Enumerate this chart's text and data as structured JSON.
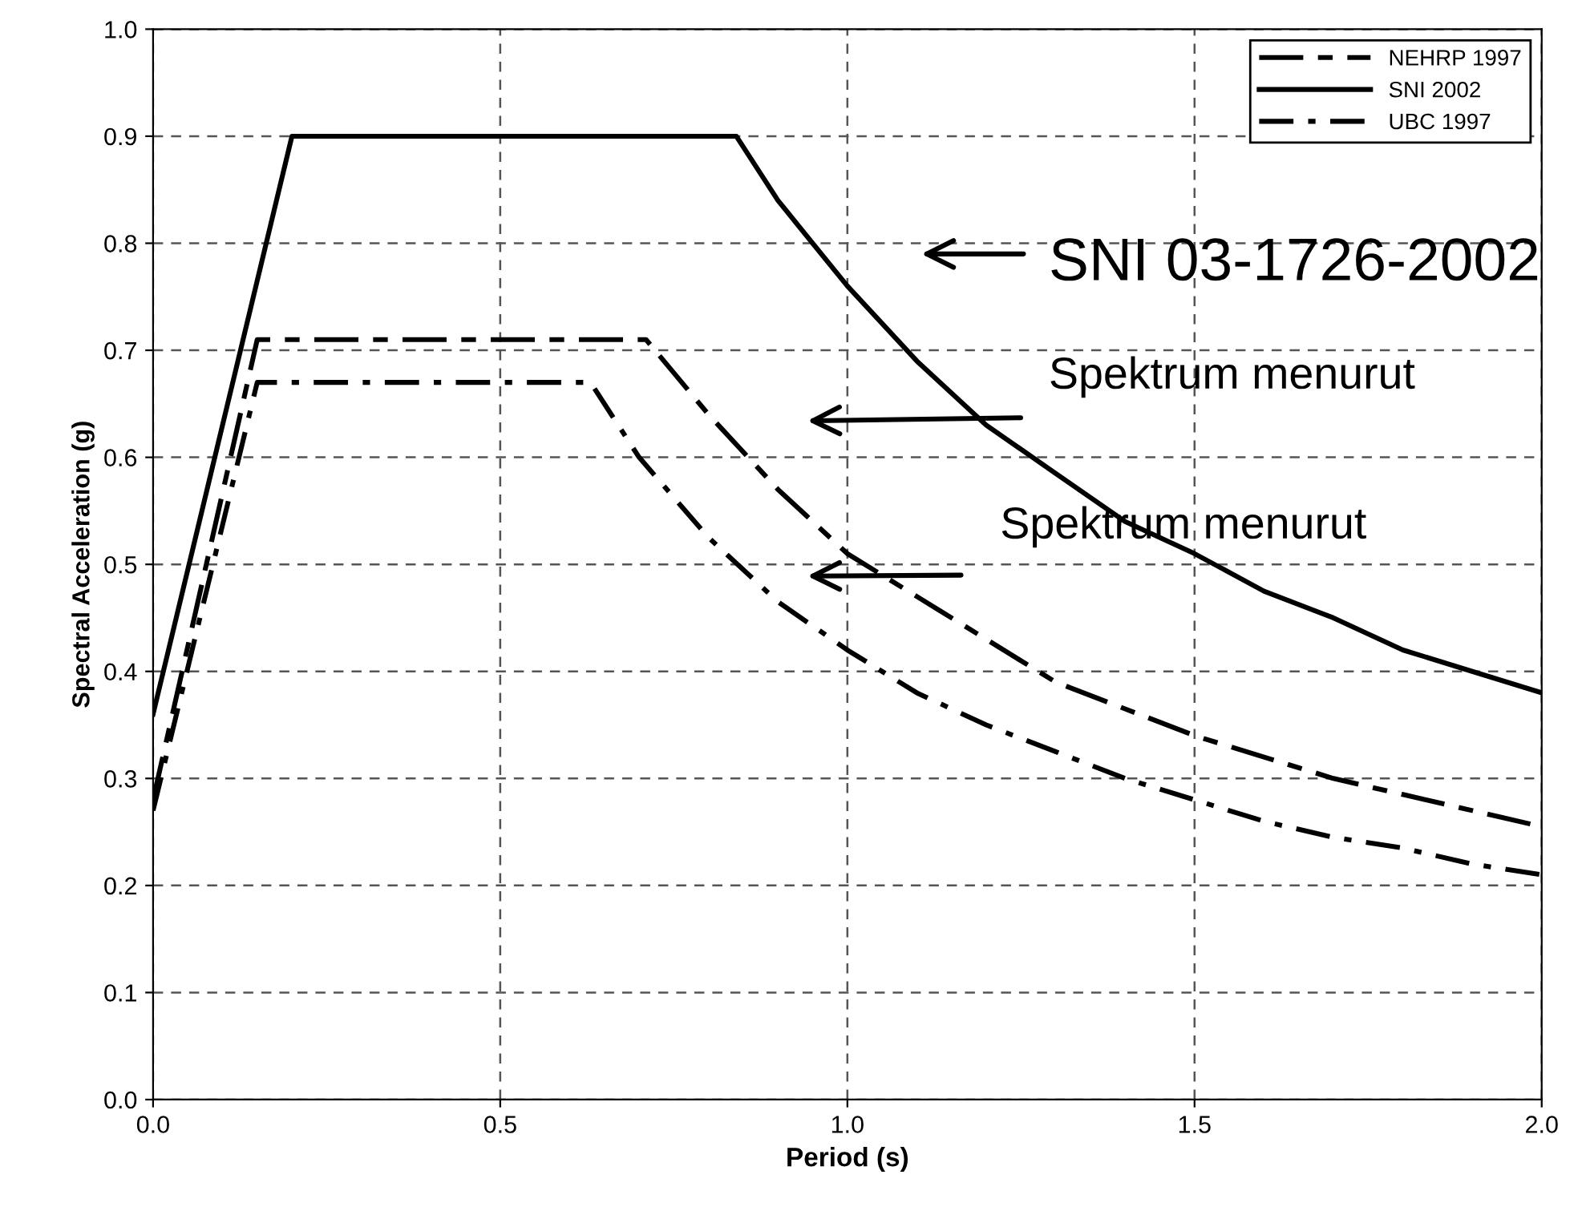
{
  "chart_data": {
    "type": "line",
    "xlabel": "Period (s)",
    "ylabel": "Spectral Acceleration (g)",
    "xlim": [
      0,
      2
    ],
    "ylim": [
      0,
      1
    ],
    "xticks": [
      {
        "value": 0,
        "label": "0.0"
      },
      0.5,
      {
        "value": 1,
        "label": "1.0"
      },
      1.5,
      {
        "value": 2,
        "label": "2.0"
      }
    ],
    "yticks": [
      {
        "value": 0,
        "label": "0.0"
      },
      0.1,
      0.2,
      0.3,
      0.4,
      0.5,
      0.6,
      0.7,
      0.8,
      0.9,
      {
        "value": 1,
        "label": "1.0"
      }
    ],
    "grid": true,
    "legend": "top right",
    "marker": "none",
    "series": [
      {
        "name": "NEHRP 1997",
        "color": "#000000",
        "line_style": "dashed",
        "x": [
          0,
          0.15,
          0.71,
          0.8,
          0.9,
          1.0,
          1.1,
          1.2,
          1.3,
          1.4,
          1.5,
          1.6,
          1.7,
          1.8,
          1.9,
          2.0
        ],
        "values": [
          0.28,
          0.71,
          0.71,
          0.64,
          0.57,
          0.51,
          0.47,
          0.43,
          0.39,
          0.365,
          0.34,
          0.32,
          0.3,
          0.285,
          0.27,
          0.255
        ]
      },
      {
        "name": "SNI 2002",
        "color": "#000000",
        "line_style": "solid",
        "x": [
          0,
          0.2,
          0.84,
          0.9,
          1.0,
          1.1,
          1.2,
          1.3,
          1.4,
          1.5,
          1.6,
          1.7,
          1.8,
          1.9,
          2.0
        ],
        "values": [
          0.36,
          0.9,
          0.9,
          0.84,
          0.76,
          0.69,
          0.63,
          0.585,
          0.54,
          0.51,
          0.475,
          0.45,
          0.42,
          0.4,
          0.38
        ]
      },
      {
        "name": "UBC 1997",
        "color": "#000000",
        "line_style": "dotted",
        "x": [
          0,
          0.15,
          0.63,
          0.7,
          0.8,
          0.9,
          1.0,
          1.1,
          1.2,
          1.3,
          1.4,
          1.5,
          1.6,
          1.7,
          1.8,
          1.9,
          2.0
        ],
        "values": [
          0.27,
          0.67,
          0.67,
          0.6,
          0.525,
          0.465,
          0.42,
          0.38,
          0.35,
          0.325,
          0.3,
          0.28,
          0.26,
          0.245,
          0.235,
          0.22,
          0.21
        ]
      }
    ],
    "annotations": [
      "SNI 03-1726-2002",
      "Spektrum menurut",
      "Spektrum menurut"
    ]
  }
}
